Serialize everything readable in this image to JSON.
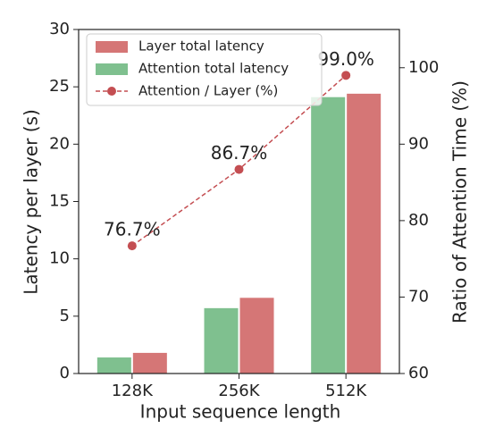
{
  "chart_data": {
    "type": "bar",
    "categories": [
      "128K",
      "256K",
      "512K"
    ],
    "x_label": "Input sequence length",
    "y_label": "Latency per layer (s)",
    "y2_label": "Ratio of Attention Time (%)",
    "ylim": [
      0,
      30
    ],
    "yticks": [
      0,
      5,
      10,
      15,
      20,
      25,
      30
    ],
    "y2lim": [
      60,
      105
    ],
    "y2ticks": [
      60,
      70,
      80,
      90,
      100
    ],
    "legend": "upper left",
    "series": [
      {
        "name": "Layer total latency",
        "color": "#d57676",
        "values": [
          1.8,
          6.6,
          24.4
        ]
      },
      {
        "name": "Attention total latency",
        "color": "#7fc08f",
        "values": [
          1.4,
          5.7,
          24.1
        ]
      },
      {
        "name": "Attention / Layer (%)",
        "color": "#c44e52",
        "axis": "y2",
        "type": "line",
        "values": [
          76.7,
          86.7,
          99.0
        ],
        "value_labels": [
          "76.7%",
          "86.7%",
          "99.0%"
        ]
      }
    ]
  }
}
